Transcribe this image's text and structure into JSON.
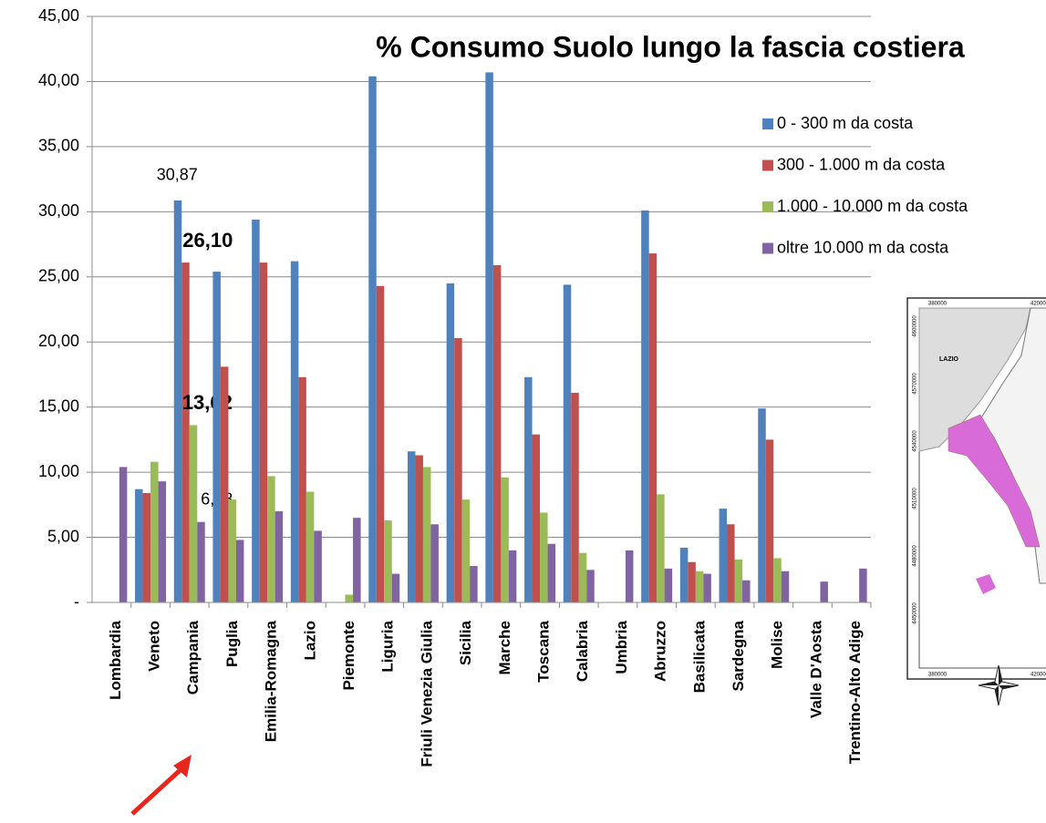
{
  "chart_data": {
    "type": "bar",
    "title": "% Consumo Suolo lungo la fascia costiera",
    "categories": [
      "Lombardia",
      "Veneto",
      "Campania",
      "Puglia",
      "Emilia-Romagna",
      "Lazio",
      "Piemonte",
      "Liguria",
      "Friuli Venezia Giulia",
      "Sicilia",
      "Marche",
      "Toscana",
      "Calabria",
      "Umbria",
      "Abruzzo",
      "Basilicata",
      "Sardegna",
      "Molise",
      "Valle D'Aosta",
      "Trentino-Alto Adige"
    ],
    "series": [
      {
        "name": "0 - 300 m da costa",
        "color": "#4f81bd",
        "values": [
          0,
          8.7,
          30.87,
          25.4,
          29.4,
          26.2,
          0,
          40.4,
          11.6,
          24.5,
          40.7,
          17.3,
          24.4,
          0,
          30.1,
          4.2,
          7.2,
          14.9,
          0,
          0
        ],
        "value_labels": [
          null,
          null,
          "30,87",
          null,
          null,
          null,
          null,
          null,
          null,
          null,
          null,
          null,
          null,
          null,
          null,
          null,
          null,
          null,
          null,
          null
        ]
      },
      {
        "name": "300 - 1.000 m da costa",
        "color": "#c0504d",
        "values": [
          0,
          8.4,
          26.1,
          18.1,
          26.1,
          17.3,
          0,
          24.3,
          11.3,
          20.3,
          25.9,
          12.9,
          16.1,
          0,
          26.8,
          3.1,
          6.0,
          12.5,
          0,
          0
        ],
        "value_labels": [
          null,
          null,
          "26,10",
          null,
          null,
          null,
          null,
          null,
          null,
          null,
          null,
          null,
          null,
          null,
          null,
          null,
          null,
          null,
          null,
          null
        ]
      },
      {
        "name": "1.000 - 10.000 m da costa",
        "color": "#9bbb59",
        "values": [
          0,
          10.8,
          13.62,
          7.9,
          9.7,
          8.5,
          0.6,
          6.3,
          10.4,
          7.9,
          9.6,
          6.9,
          3.8,
          0,
          8.3,
          2.4,
          3.3,
          3.4,
          0,
          0
        ],
        "value_labels": [
          null,
          null,
          "13,62",
          null,
          null,
          null,
          null,
          null,
          null,
          null,
          null,
          null,
          null,
          null,
          null,
          null,
          null,
          null,
          null,
          null
        ]
      },
      {
        "name": "oltre 10.000 m da costa",
        "color": "#8064a2",
        "values": [
          10.4,
          9.3,
          6.18,
          4.8,
          7.0,
          5.5,
          6.5,
          2.2,
          6.0,
          2.8,
          4.0,
          4.5,
          2.5,
          4.0,
          2.6,
          2.2,
          1.7,
          2.4,
          1.6,
          2.6
        ],
        "value_labels": [
          null,
          null,
          "6,18",
          null,
          null,
          null,
          null,
          null,
          null,
          null,
          null,
          null,
          null,
          null,
          null,
          null,
          null,
          null,
          null,
          null
        ]
      }
    ],
    "ylim": [
      0,
      45
    ],
    "yticks": [
      {
        "value": 0,
        "label": "-"
      },
      {
        "value": 5,
        "label": "5,00"
      },
      {
        "value": 10,
        "label": "10,00"
      },
      {
        "value": 15,
        "label": "15,00"
      },
      {
        "value": 20,
        "label": "20,00"
      },
      {
        "value": 25,
        "label": "25,00"
      },
      {
        "value": 30,
        "label": "30,00"
      },
      {
        "value": 35,
        "label": "35,00"
      },
      {
        "value": 40,
        "label": "40,00"
      },
      {
        "value": 45,
        "label": "45,00"
      }
    ],
    "grid": true,
    "legend": "right"
  },
  "inset": {
    "region": "LAZIO",
    "x_labels": [
      "380000",
      "420000"
    ],
    "y_labels": [
      "4600000",
      "4570000",
      "4540000",
      "4510000",
      "4480000",
      "4450000"
    ]
  }
}
